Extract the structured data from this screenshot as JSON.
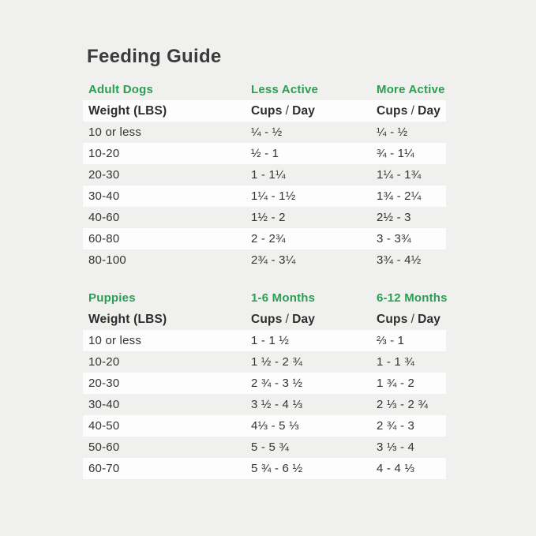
{
  "page": {
    "title": "Feeding Guide"
  },
  "colors": {
    "accent_green": "#2b9e52",
    "page_background": "#f0f0ee",
    "row_highlight": "#fdfdfd",
    "text_dark": "#363636"
  },
  "labels": {
    "weight_header": "Weight (LBS)",
    "cups": "Cups",
    "slash": "/",
    "day": "Day"
  },
  "adult": {
    "section_label": "Adult Dogs",
    "col2_label": "Less Active",
    "col3_label": "More Active",
    "rows": [
      {
        "weight": "10 or less",
        "col2": "¼ - ½",
        "col3": "¼ - ½"
      },
      {
        "weight": "10-20",
        "col2": "½ - 1",
        "col3": "¾ - 1¼"
      },
      {
        "weight": "20-30",
        "col2": "1 - 1¼",
        "col3": "1¼ - 1¾"
      },
      {
        "weight": "30-40",
        "col2": "1¼ - 1½",
        "col3": "1¾ - 2¼"
      },
      {
        "weight": "40-60",
        "col2": "1½ - 2",
        "col3": "2½ - 3"
      },
      {
        "weight": "60-80",
        "col2": "2 - 2¾",
        "col3": "3 - 3¾"
      },
      {
        "weight": "80-100",
        "col2": "2¾ - 3¼",
        "col3": "3¾ - 4½"
      }
    ]
  },
  "puppies": {
    "section_label": "Puppies",
    "col2_label": "1-6 Months",
    "col3_label": "6-12 Months",
    "rows": [
      {
        "weight": "10 or less",
        "col2": "1 - 1 ½",
        "col3": "⅔ - 1"
      },
      {
        "weight": "10-20",
        "col2": "1 ½ - 2 ¾",
        "col3": "1 - 1 ¾"
      },
      {
        "weight": "20-30",
        "col2": "2 ¾ - 3 ½",
        "col3": "1 ¾ - 2"
      },
      {
        "weight": "30-40",
        "col2": "3 ½ - 4 ⅓",
        "col3": "2 ⅓ - 2 ¾"
      },
      {
        "weight": "40-50",
        "col2": "4⅓ - 5 ⅓",
        "col3": "2 ¾ - 3"
      },
      {
        "weight": "50-60",
        "col2": "5 - 5 ¾",
        "col3": "3 ⅓ - 4"
      },
      {
        "weight": "60-70",
        "col2": "5 ¾ - 6 ½",
        "col3": "4 - 4 ⅓"
      }
    ]
  }
}
